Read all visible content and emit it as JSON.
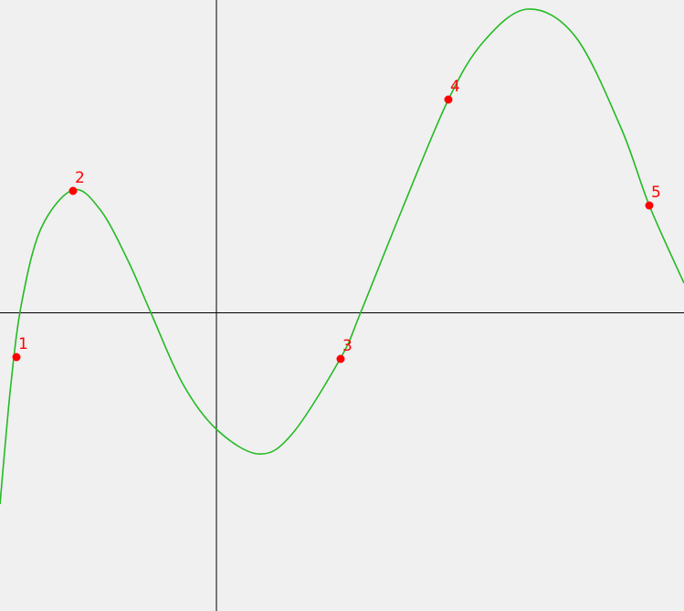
{
  "points": [
    "1",
    "2",
    "3",
    "4",
    "5"
  ]
}
